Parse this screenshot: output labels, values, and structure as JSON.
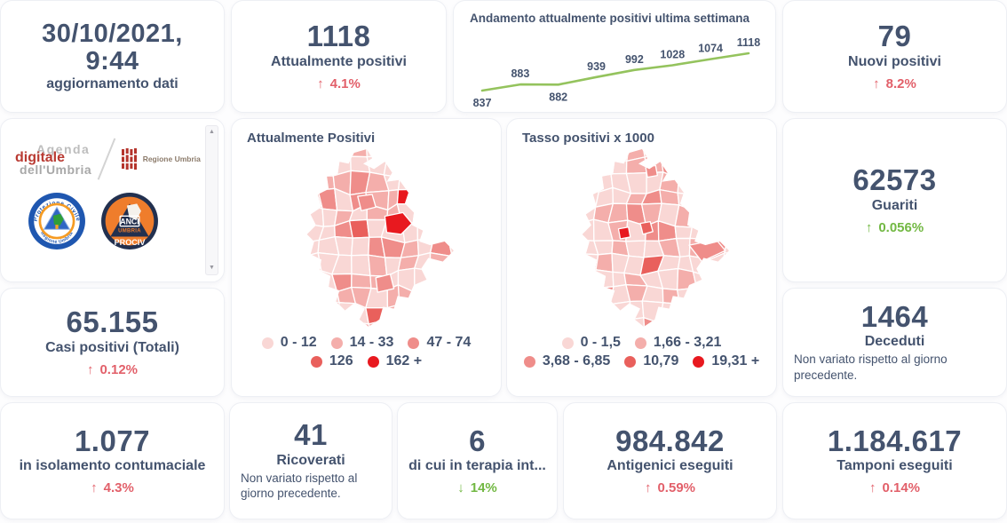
{
  "colors": {
    "text_dark": "#44536e",
    "delta_red": "#e2606a",
    "delta_green": "#72b843",
    "trend_line_green": "#94c35d"
  },
  "cards": {
    "update": {
      "value": "30/10/2021, 9:44",
      "label": "aggiornamento dati"
    },
    "attualmente_positivi": {
      "value": "1118",
      "label": "Attualmente positivi",
      "arrow": "↑",
      "delta": "4.1%",
      "delta_color": "#e2606a"
    },
    "nuovi_positivi": {
      "value": "79",
      "label": "Nuovi positivi",
      "arrow": "↑",
      "delta": "8.2%",
      "delta_color": "#e2606a"
    },
    "guariti": {
      "value": "62573",
      "label": "Guariti",
      "arrow": "↑",
      "delta": "0.056%",
      "delta_color": "#72b843"
    },
    "casi_totali": {
      "value": "65.155",
      "label": "Casi positivi (Totali)",
      "arrow": "↑",
      "delta": "0.12%",
      "delta_color": "#e2606a"
    },
    "deceduti": {
      "value": "1464",
      "label": "Deceduti",
      "note": "Non variato rispetto al giorno precedente."
    },
    "isolamento": {
      "value": "1.077",
      "label": "in isolamento contumaciale",
      "arrow": "↑",
      "delta": "4.3%",
      "delta_color": "#e2606a"
    },
    "ricoverati": {
      "value": "41",
      "label": "Ricoverati",
      "note": "Non variato rispetto al giorno precedente."
    },
    "terapia_intensiva": {
      "value": "6",
      "label": "di cui in terapia int...",
      "arrow": "↓",
      "delta": "14%",
      "delta_color": "#72b843"
    },
    "antigenici": {
      "value": "984.842",
      "label": "Antigenici eseguiti",
      "arrow": "↑",
      "delta": "0.59%",
      "delta_color": "#e2606a"
    },
    "tamponi": {
      "value": "1.184.617",
      "label": "Tamponi eseguiti",
      "arrow": "↑",
      "delta": "0.14%",
      "delta_color": "#e2606a"
    }
  },
  "trend_chart": {
    "title": "Andamento attualmente positivi ultima settimana",
    "values": [
      837,
      883,
      882,
      939,
      992,
      1028,
      1074,
      1118
    ],
    "line_color": "#94c35d"
  },
  "maps": [
    {
      "title": "Attualmente Positivi",
      "first_row_items": 3,
      "legend": [
        {
          "label": "0 - 12",
          "color": "#f9d7d5"
        },
        {
          "label": "14 - 33",
          "color": "#f4aeab"
        },
        {
          "label": "47 - 74",
          "color": "#ef8d8a"
        },
        {
          "label": "126",
          "color": "#e9605c"
        },
        {
          "label": "162 +",
          "color": "#e8191f"
        }
      ]
    },
    {
      "title": "Tasso positivi x 1000",
      "first_row_items": 2,
      "legend": [
        {
          "label": "0 - 1,5",
          "color": "#f9d7d5"
        },
        {
          "label": "1,66 - 3,21",
          "color": "#f4aeab"
        },
        {
          "label": "3,68 - 6,85",
          "color": "#ef8d8a"
        },
        {
          "label": "10,79",
          "color": "#e9605c"
        },
        {
          "label": "19,31 +",
          "color": "#e8191f"
        }
      ]
    }
  ],
  "logos": {
    "agenda": {
      "line1": "Agenda",
      "line2": "digitale",
      "line3": "dell'Umbria"
    },
    "regione": "Regione Umbria",
    "protezione_civile": {
      "top": "Protezione Civile",
      "bottom": "Regione Umbria"
    },
    "anci": {
      "line1": "ANCI",
      "line2": "UMBRIA",
      "line3": "PROCIV"
    }
  },
  "chart_data": [
    {
      "type": "line",
      "title": "Andamento attualmente positivi ultima settimana",
      "x": [
        1,
        2,
        3,
        4,
        5,
        6,
        7,
        8
      ],
      "values": [
        837,
        883,
        882,
        939,
        992,
        1028,
        1074,
        1118
      ],
      "color": "#94c35d",
      "data_labels": true,
      "axes": "hidden",
      "legend_position": "none"
    },
    {
      "type": "heatmap",
      "subtype": "choropleth",
      "title": "Attualmente Positivi",
      "region": "Umbria (comuni)",
      "bins": [
        "0 - 12",
        "14 - 33",
        "47 - 74",
        "126",
        "162 +"
      ],
      "bin_colors": [
        "#f9d7d5",
        "#f4aeab",
        "#ef8d8a",
        "#e9605c",
        "#e8191f"
      ],
      "legend_position": "bottom"
    },
    {
      "type": "heatmap",
      "subtype": "choropleth",
      "title": "Tasso positivi x 1000",
      "region": "Umbria (comuni)",
      "bins": [
        "0 - 1,5",
        "1,66 - 3,21",
        "3,68 - 6,85",
        "10,79",
        "19,31 +"
      ],
      "bin_colors": [
        "#f9d7d5",
        "#f4aeab",
        "#ef8d8a",
        "#e9605c",
        "#e8191f"
      ],
      "legend_position": "bottom"
    }
  ]
}
